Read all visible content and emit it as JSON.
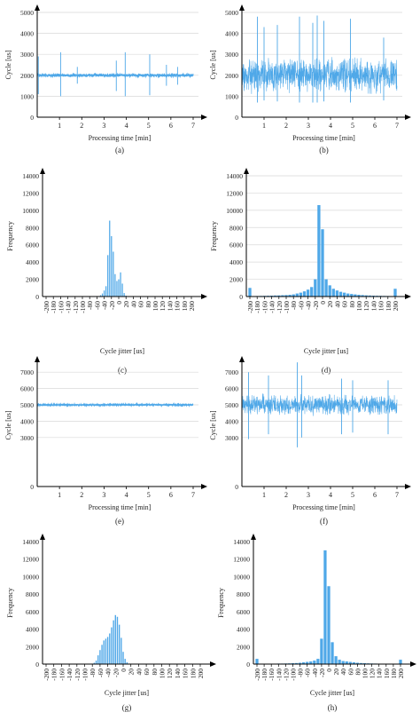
{
  "colors": {
    "series": "#4fa8e8",
    "axis": "#000000",
    "grid": "#d9d9d9",
    "text": "#222222"
  },
  "chart_data": [
    {
      "id": "a",
      "caption": "(a)",
      "type": "line",
      "xlabel": "Processing time [min]",
      "ylabel": "Cycle [us]",
      "xlim": [
        0,
        7
      ],
      "ylim": [
        0,
        5000
      ],
      "xticks": [
        "1",
        "2",
        "3",
        "4",
        "5",
        "6",
        "7"
      ],
      "yticks": [
        "0",
        "1000",
        "2000",
        "3000",
        "4000",
        "5000"
      ],
      "grid": true,
      "baseline": 2000,
      "noise": 60,
      "spikes": [
        {
          "x": 0.05,
          "y": 2900,
          "y2": 1100
        },
        {
          "x": 1.05,
          "y": 3100,
          "y2": 1000
        },
        {
          "x": 1.8,
          "y": 2400,
          "y2": 1600
        },
        {
          "x": 3.55,
          "y": 2700,
          "y2": 1250
        },
        {
          "x": 3.95,
          "y": 3100,
          "y2": 1000
        },
        {
          "x": 5.05,
          "y": 3000,
          "y2": 1050
        },
        {
          "x": 5.8,
          "y": 2500,
          "y2": 1500
        },
        {
          "x": 6.3,
          "y": 2400,
          "y2": 1550
        }
      ]
    },
    {
      "id": "b",
      "caption": "(b)",
      "type": "line",
      "xlabel": "Processing time [min]",
      "ylabel": "Cycle [us]",
      "xlim": [
        0,
        7
      ],
      "ylim": [
        0,
        5000
      ],
      "xticks": [
        "1",
        "2",
        "3",
        "4",
        "5",
        "6",
        "7"
      ],
      "yticks": [
        "0",
        "1000",
        "2000",
        "3000",
        "4000",
        "5000"
      ],
      "grid": true,
      "baseline": 2000,
      "noise": 700,
      "spikes": [
        {
          "x": 0.7,
          "y": 4800,
          "y2": 700
        },
        {
          "x": 1.0,
          "y": 4300,
          "y2": 800
        },
        {
          "x": 1.6,
          "y": 4400,
          "y2": 750
        },
        {
          "x": 2.6,
          "y": 4800,
          "y2": 700
        },
        {
          "x": 3.2,
          "y": 4500,
          "y2": 700
        },
        {
          "x": 3.4,
          "y": 4850,
          "y2": 700
        },
        {
          "x": 3.7,
          "y": 4600,
          "y2": 750
        },
        {
          "x": 4.9,
          "y": 4700,
          "y2": 700
        },
        {
          "x": 6.4,
          "y": 3800,
          "y2": 800
        }
      ]
    },
    {
      "id": "c",
      "caption": "(c)",
      "type": "bar",
      "xlabel": "Cycle jitter [us]",
      "ylabel": "Frequency",
      "ylim": [
        0,
        14000
      ],
      "yticks": [
        "0",
        "2000",
        "4000",
        "6000",
        "8000",
        "10000",
        "12000",
        "14000"
      ],
      "grid": false,
      "categories": [
        "-200",
        "-180",
        "-160",
        "-140",
        "-120",
        "-100",
        "-80",
        "-60",
        "-40",
        "-20",
        "0",
        "20",
        "40",
        "60",
        "80",
        "100",
        "120",
        "140",
        "160",
        "180",
        "200"
      ],
      "xrange": [
        -200,
        200
      ],
      "binwidth": 5,
      "values": [
        {
          "x": -55,
          "y": 50
        },
        {
          "x": -50,
          "y": 150
        },
        {
          "x": -45,
          "y": 350
        },
        {
          "x": -40,
          "y": 700
        },
        {
          "x": -35,
          "y": 1200
        },
        {
          "x": -30,
          "y": 4800
        },
        {
          "x": -25,
          "y": 8800
        },
        {
          "x": -20,
          "y": 7000
        },
        {
          "x": -15,
          "y": 5200
        },
        {
          "x": -10,
          "y": 2600
        },
        {
          "x": -5,
          "y": 1800
        },
        {
          "x": 0,
          "y": 2000
        },
        {
          "x": 5,
          "y": 2800
        },
        {
          "x": 10,
          "y": 1500
        },
        {
          "x": 15,
          "y": 400
        },
        {
          "x": 20,
          "y": 100
        }
      ]
    },
    {
      "id": "d",
      "caption": "(d)",
      "type": "bar",
      "xlabel": "Cycle jitter [us]",
      "ylabel": "Frequency",
      "ylim": [
        0,
        14000
      ],
      "yticks": [
        "0",
        "2000",
        "4000",
        "6000",
        "8000",
        "10000",
        "12000",
        "14000"
      ],
      "grid": true,
      "categories": [
        "-200",
        "-180",
        "-160",
        "-140",
        "-120",
        "-100",
        "-80",
        "-60",
        "-40",
        "-20",
        "0",
        "20",
        "40",
        "60",
        "80",
        "100",
        "120",
        "140",
        "160",
        "180",
        "200"
      ],
      "xrange": [
        -200,
        200
      ],
      "binwidth": 10,
      "values": [
        {
          "x": -200,
          "y": 1000
        },
        {
          "x": -190,
          "y": 50
        },
        {
          "x": -180,
          "y": 60
        },
        {
          "x": -170,
          "y": 70
        },
        {
          "x": -160,
          "y": 80
        },
        {
          "x": -150,
          "y": 90
        },
        {
          "x": -140,
          "y": 100
        },
        {
          "x": -130,
          "y": 120
        },
        {
          "x": -120,
          "y": 130
        },
        {
          "x": -110,
          "y": 150
        },
        {
          "x": -100,
          "y": 170
        },
        {
          "x": -90,
          "y": 200
        },
        {
          "x": -80,
          "y": 250
        },
        {
          "x": -70,
          "y": 350
        },
        {
          "x": -60,
          "y": 450
        },
        {
          "x": -50,
          "y": 600
        },
        {
          "x": -40,
          "y": 800
        },
        {
          "x": -30,
          "y": 1100
        },
        {
          "x": -20,
          "y": 2000
        },
        {
          "x": -10,
          "y": 10600
        },
        {
          "x": 0,
          "y": 7800
        },
        {
          "x": 10,
          "y": 2000
        },
        {
          "x": 20,
          "y": 1300
        },
        {
          "x": 30,
          "y": 900
        },
        {
          "x": 40,
          "y": 700
        },
        {
          "x": 50,
          "y": 550
        },
        {
          "x": 60,
          "y": 450
        },
        {
          "x": 70,
          "y": 350
        },
        {
          "x": 80,
          "y": 300
        },
        {
          "x": 90,
          "y": 250
        },
        {
          "x": 100,
          "y": 200
        },
        {
          "x": 110,
          "y": 170
        },
        {
          "x": 120,
          "y": 140
        },
        {
          "x": 130,
          "y": 120
        },
        {
          "x": 140,
          "y": 100
        },
        {
          "x": 150,
          "y": 90
        },
        {
          "x": 160,
          "y": 80
        },
        {
          "x": 170,
          "y": 70
        },
        {
          "x": 180,
          "y": 60
        },
        {
          "x": 190,
          "y": 50
        },
        {
          "x": 200,
          "y": 900
        }
      ]
    },
    {
      "id": "e",
      "caption": "(e)",
      "type": "line",
      "xlabel": "Processing time [min]",
      "ylabel": "Cycle [us]",
      "xlim": [
        0,
        7
      ],
      "ylim": [
        0,
        7500
      ],
      "xticks": [
        "1",
        "2",
        "3",
        "4",
        "5",
        "6",
        "7"
      ],
      "yticks": [
        "0",
        "3000",
        "4000",
        "5000",
        "6000",
        "7000"
      ],
      "ytickvalues": [
        0,
        3000,
        4000,
        5000,
        6000,
        7000
      ],
      "grid": true,
      "baseline": 5000,
      "noise": 40,
      "spikes": []
    },
    {
      "id": "f",
      "caption": "(f)",
      "type": "line",
      "xlabel": "Processing time [min]",
      "ylabel": "Cycle [us]",
      "xlim": [
        0,
        7
      ],
      "ylim": [
        0,
        7500
      ],
      "xticks": [
        "1",
        "2",
        "3",
        "4",
        "5",
        "6",
        "7"
      ],
      "yticks": [
        "0",
        "3000",
        "4000",
        "5000",
        "6000",
        "7000"
      ],
      "ytickvalues": [
        0,
        3000,
        4000,
        5000,
        6000,
        7000
      ],
      "grid": true,
      "baseline": 5000,
      "noise": 550,
      "spikes": [
        {
          "x": 0.3,
          "y": 7000,
          "y2": 2900
        },
        {
          "x": 1.2,
          "y": 6800,
          "y2": 3200
        },
        {
          "x": 2.5,
          "y": 7600,
          "y2": 2400
        },
        {
          "x": 2.7,
          "y": 6800,
          "y2": 3000
        },
        {
          "x": 4.5,
          "y": 6600,
          "y2": 3200
        },
        {
          "x": 5.0,
          "y": 6500,
          "y2": 3300
        },
        {
          "x": 6.6,
          "y": 6500,
          "y2": 3200
        }
      ]
    },
    {
      "id": "g",
      "caption": "(g)",
      "type": "bar",
      "xlabel": "Cycle jitter [us]",
      "ylabel": "Frequency",
      "ylim": [
        0,
        14000
      ],
      "yticks": [
        "0",
        "2000",
        "4000",
        "6000",
        "8000",
        "10000",
        "12000",
        "14000"
      ],
      "grid": false,
      "categories": [
        "-200",
        "-180",
        "-160",
        "-140",
        "-120",
        "-100",
        "-80",
        "-60",
        "-40",
        "-20",
        "0",
        "20",
        "40",
        "60",
        "80",
        "100",
        "120",
        "140",
        "160",
        "180",
        "200"
      ],
      "xrange": [
        -200,
        200
      ],
      "binwidth": 5,
      "values": [
        {
          "x": -75,
          "y": 150
        },
        {
          "x": -70,
          "y": 400
        },
        {
          "x": -65,
          "y": 1000
        },
        {
          "x": -60,
          "y": 1600
        },
        {
          "x": -55,
          "y": 2200
        },
        {
          "x": -50,
          "y": 2700
        },
        {
          "x": -45,
          "y": 2900
        },
        {
          "x": -40,
          "y": 3100
        },
        {
          "x": -35,
          "y": 3500
        },
        {
          "x": -30,
          "y": 4200
        },
        {
          "x": -25,
          "y": 5000
        },
        {
          "x": -20,
          "y": 5600
        },
        {
          "x": -15,
          "y": 5400
        },
        {
          "x": -10,
          "y": 4500
        },
        {
          "x": -5,
          "y": 3000
        },
        {
          "x": 0,
          "y": 1400
        },
        {
          "x": 5,
          "y": 600
        },
        {
          "x": 10,
          "y": 200
        }
      ]
    },
    {
      "id": "h",
      "caption": "(h)",
      "type": "bar",
      "xlabel": "Cycle jitter [us]",
      "ylabel": "Frequency",
      "ylim": [
        0,
        14000
      ],
      "yticks": [
        "0",
        "2000",
        "4000",
        "6000",
        "8000",
        "10000",
        "12000",
        "14000"
      ],
      "grid": false,
      "categories": [
        "-200",
        "-180",
        "-160",
        "-140",
        "-120",
        "-100",
        "-80",
        "-60",
        "-40",
        "-20",
        "0",
        "20",
        "40",
        "60",
        "80",
        "100",
        "120",
        "140",
        "160",
        "180",
        "200"
      ],
      "xrange": [
        -200,
        200
      ],
      "binwidth": 10,
      "values": [
        {
          "x": -200,
          "y": 600
        },
        {
          "x": -190,
          "y": 40
        },
        {
          "x": -180,
          "y": 40
        },
        {
          "x": -170,
          "y": 40
        },
        {
          "x": -160,
          "y": 50
        },
        {
          "x": -150,
          "y": 50
        },
        {
          "x": -140,
          "y": 60
        },
        {
          "x": -130,
          "y": 60
        },
        {
          "x": -120,
          "y": 70
        },
        {
          "x": -110,
          "y": 80
        },
        {
          "x": -100,
          "y": 100
        },
        {
          "x": -90,
          "y": 120
        },
        {
          "x": -80,
          "y": 150
        },
        {
          "x": -70,
          "y": 200
        },
        {
          "x": -60,
          "y": 250
        },
        {
          "x": -50,
          "y": 300
        },
        {
          "x": -40,
          "y": 400
        },
        {
          "x": -30,
          "y": 600
        },
        {
          "x": -20,
          "y": 2900
        },
        {
          "x": -10,
          "y": 13000
        },
        {
          "x": 0,
          "y": 8900
        },
        {
          "x": 10,
          "y": 2500
        },
        {
          "x": 20,
          "y": 900
        },
        {
          "x": 30,
          "y": 500
        },
        {
          "x": 40,
          "y": 350
        },
        {
          "x": 50,
          "y": 300
        },
        {
          "x": 60,
          "y": 250
        },
        {
          "x": 70,
          "y": 200
        },
        {
          "x": 80,
          "y": 150
        },
        {
          "x": 90,
          "y": 120
        },
        {
          "x": 100,
          "y": 100
        },
        {
          "x": 110,
          "y": 80
        },
        {
          "x": 120,
          "y": 70
        },
        {
          "x": 130,
          "y": 60
        },
        {
          "x": 140,
          "y": 50
        },
        {
          "x": 150,
          "y": 50
        },
        {
          "x": 160,
          "y": 40
        },
        {
          "x": 170,
          "y": 40
        },
        {
          "x": 180,
          "y": 40
        },
        {
          "x": 190,
          "y": 40
        },
        {
          "x": 200,
          "y": 500
        }
      ]
    }
  ]
}
